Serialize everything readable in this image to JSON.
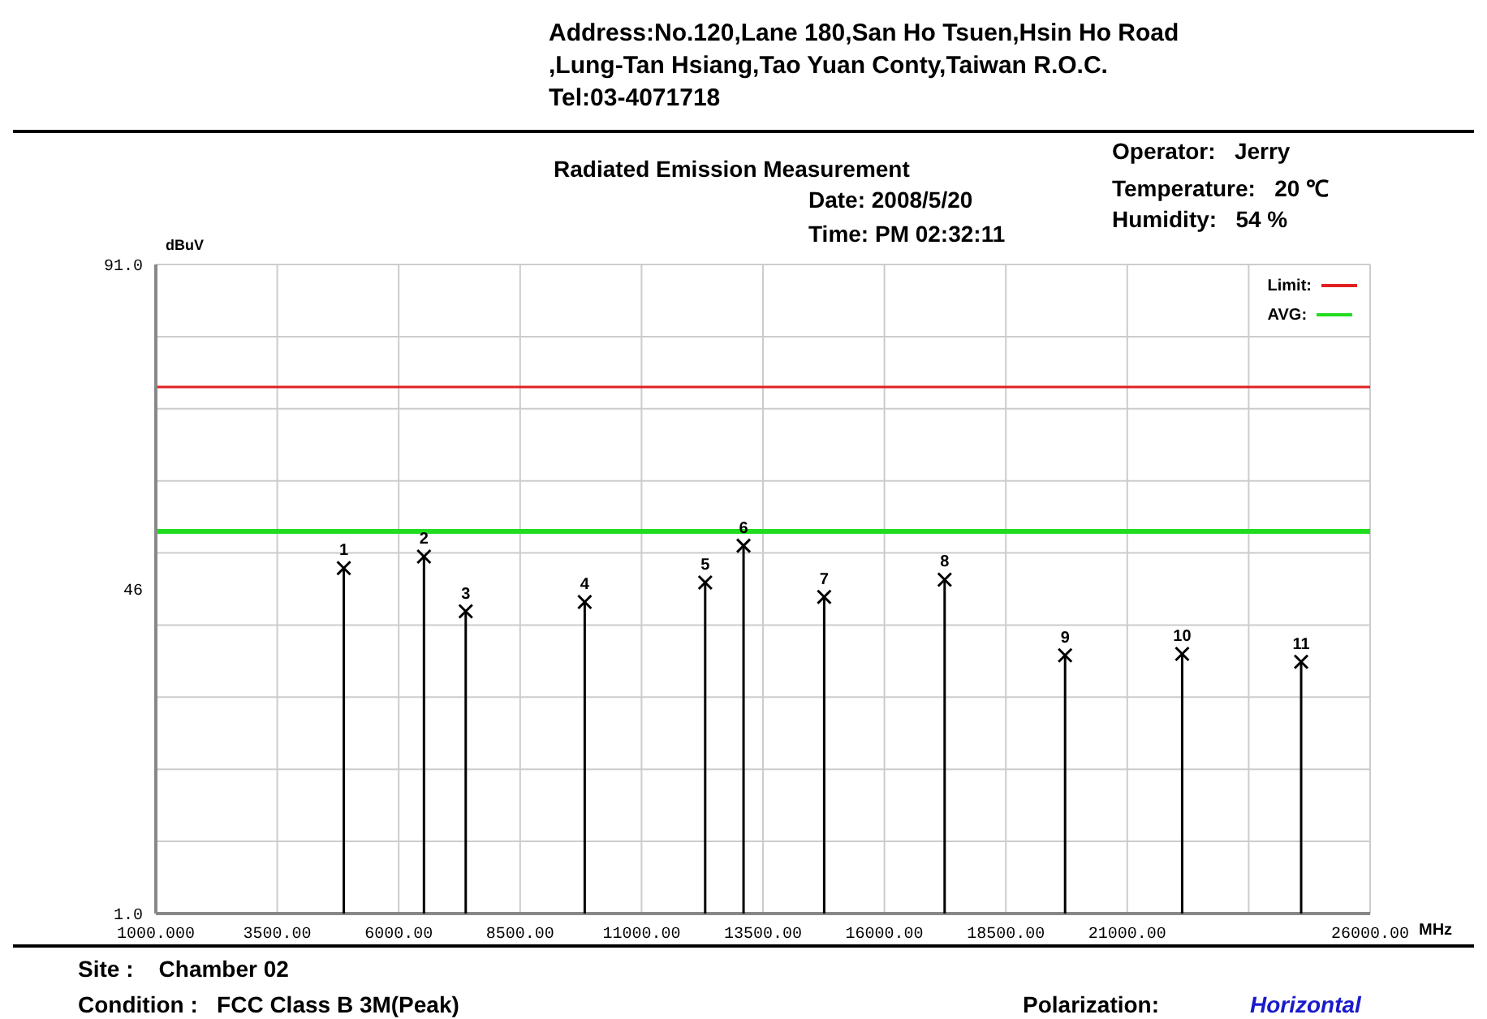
{
  "chart_data": {
    "type": "lollipop",
    "title": "Radiated Emission Measurement",
    "xlabel": "MHz",
    "ylabel": "dBuV",
    "x": [
      4870,
      6520,
      7380,
      9830,
      12310,
      13100,
      14760,
      17240,
      19720,
      22130,
      24580
    ],
    "values": [
      48.9,
      50.5,
      42.9,
      44.2,
      46.9,
      52.0,
      44.9,
      47.3,
      36.8,
      37.0,
      35.9
    ],
    "color": "#000000",
    "marker": "cross",
    "xlim": [
      1000,
      26000
    ],
    "xticks": [
      {
        "value": 1000,
        "label": "1000.000"
      },
      {
        "value": 3500,
        "label": "3500.00"
      },
      {
        "value": 6000,
        "label": "6000.00"
      },
      {
        "value": 8500,
        "label": "8500.00"
      },
      {
        "value": 11000,
        "label": "11000.00"
      },
      {
        "value": 13500,
        "label": "13500.00"
      },
      {
        "value": 16000,
        "label": "16000.00"
      },
      {
        "value": 18500,
        "label": "18500.00"
      },
      {
        "value": 21000,
        "label": "21000.00"
      },
      {
        "value": 23500,
        "label": null
      },
      {
        "value": 26000,
        "label": "26000.00"
      }
    ],
    "ylim": [
      1,
      91
    ],
    "yticks": [
      {
        "value": 1,
        "label": "1.0"
      },
      {
        "value": 11,
        "label": null
      },
      {
        "value": 21,
        "label": null
      },
      {
        "value": 31,
        "label": null
      },
      {
        "value": 41,
        "label": null
      },
      46,
      {
        "value": 51,
        "label": null
      },
      {
        "value": 61,
        "label": null
      },
      {
        "value": 71,
        "label": null
      },
      {
        "value": 81,
        "label": null
      },
      {
        "value": 91,
        "label": "91.0"
      }
    ],
    "ref_lines": [
      {
        "axis": "y",
        "value": 74,
        "label": "Limit:",
        "color": "#e02020"
      },
      {
        "axis": "y",
        "value": 54,
        "label": "AVG:",
        "color": "#20dd20"
      }
    ],
    "grid": true,
    "legend": "top right",
    "annotations": [
      "Address:No.120,Lane 180,San Ho Tsuen,Hsin Ho Road",
      ",Lung-Tan Hsiang,Tao Yuan Conty,Taiwan R.O.C.",
      "Tel:03-4071718",
      "Date: 2008/5/20",
      "Time: PM 02:32:11",
      "Operator:   Jerry",
      "Temperature:   20 ℃",
      "Humidity:   54 %",
      "Site :    Chamber 02",
      "Condition :   FCC Class B 3M(Peak)",
      "Polarization:",
      "Horizontal",
      {
        "text": "1",
        "x": 4870,
        "y": 48.9
      },
      {
        "text": "2",
        "x": 6520,
        "y": 50.5
      },
      {
        "text": "3",
        "x": 7380,
        "y": 42.9
      },
      {
        "text": "4",
        "x": 9830,
        "y": 44.2
      },
      {
        "text": "5",
        "x": 12310,
        "y": 46.9
      },
      {
        "text": "6",
        "x": 13100,
        "y": 52.0
      },
      {
        "text": "7",
        "x": 14760,
        "y": 44.9
      },
      {
        "text": "8",
        "x": 17240,
        "y": 47.3
      },
      {
        "text": "9",
        "x": 19720,
        "y": 36.8
      },
      {
        "text": "10",
        "x": 22130,
        "y": 37.0
      },
      {
        "text": "11",
        "x": 24580,
        "y": 35.9
      }
    ]
  }
}
